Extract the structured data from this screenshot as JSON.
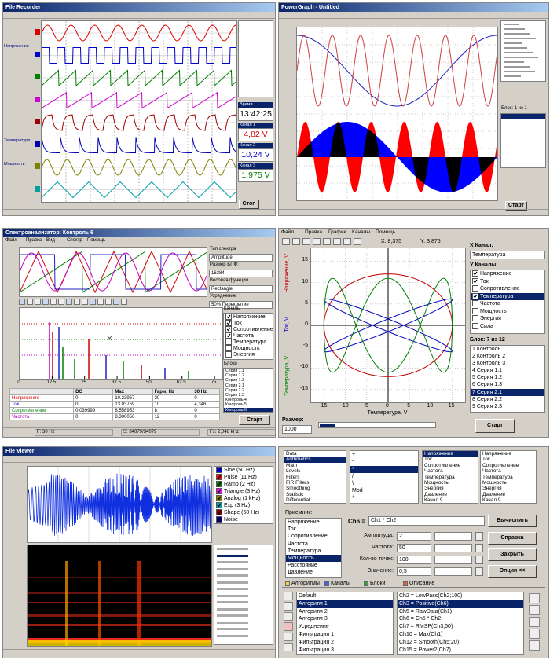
{
  "recorder": {
    "title": "File Recorder",
    "channels": [
      "Напряжение",
      "Температура",
      "Мощность"
    ],
    "readouts": [
      {
        "label": "Время",
        "value": "13:42:25",
        "color": "#000000"
      },
      {
        "label": "Канал 1",
        "value": "4,82 V",
        "color": "#d00000"
      },
      {
        "label": "Канал 2",
        "value": "10,24 V",
        "color": "#0000c0"
      },
      {
        "label": "Канал 3",
        "value": "1,975 V",
        "color": "#008000"
      }
    ],
    "button": "Стоп"
  },
  "powergraph": {
    "title": "PowerGraph - Untitled",
    "block": "Блок: 1 из 1",
    "button": "Старт"
  },
  "spectrum": {
    "title": "Спектроанализатор: Контроль 6",
    "menu": [
      "Файл",
      "Правка",
      "Вид",
      "Спектр",
      "Помощь"
    ],
    "settings": [
      "Тип спектра",
      "Amplitude",
      "Размер БПФ:",
      "16384",
      "Весовая функция",
      "Rectangle",
      "Усреднение:",
      "50% Перекрытие"
    ],
    "channels_title": "Каналы",
    "channels": [
      "Напряжение",
      "Ток",
      "Сопротивление",
      "Частота",
      "Температура",
      "Мощность",
      "Энергия"
    ],
    "checked": [
      true,
      true,
      true,
      true,
      false,
      false,
      false
    ],
    "xlim": [
      0,
      78
    ],
    "xticks": [
      0,
      12.5,
      25,
      37.5,
      50,
      62.5,
      75
    ],
    "table": {
      "header": [
        "DC",
        "Max",
        "Гарм, Hz",
        "30 Hz"
      ],
      "rows": [
        [
          "Напряжение",
          0,
          10.23967,
          20,
          0
        ],
        [
          "Ток",
          0,
          13.03759,
          10,
          "4,346"
        ],
        [
          "Сопротивление",
          0.039999,
          6.558953,
          8,
          0
        ],
        [
          "Частота",
          0,
          8.300056,
          12,
          0
        ]
      ],
      "row_colors": [
        "#d00000",
        "#0000d0",
        "#008000",
        "#c000c0"
      ]
    },
    "status": [
      "F: 30 Hz",
      "S: 34079/34079",
      "Fs: 2,048 kHz"
    ],
    "blocks_title": "Блоки",
    "blocks": [
      "Серия 1.1",
      "Серия 1.2",
      "Серия 1.3",
      "Серия 2.1",
      "Серия 2.2",
      "Серия 2.3",
      "Контроль 4",
      "Контроль 5",
      "Контроль 6"
    ],
    "selected": 8,
    "button": "Старт"
  },
  "xy": {
    "menu": [
      "Файл",
      "Правка",
      "График",
      "Каналы",
      "Помощь"
    ],
    "x_readout": "X: 8,375",
    "y_readout": "Y: 3,875",
    "x_channel_label": "X Канал:",
    "x_channel": "Температура",
    "y_channels_label": "Y Каналы:",
    "y_channels": [
      "Напряжение",
      "Ток",
      "Сопротивление",
      "Температура",
      "Частота",
      "Мощность",
      "Энергия",
      "Сила"
    ],
    "checked": [
      true,
      true,
      false,
      true,
      false,
      false,
      false,
      false
    ],
    "selected": 3,
    "block_label": "Блок: 7 из 12",
    "blocks": [
      "1 Контроль 1",
      "2 Контроль 2",
      "3 Контроль 3",
      "4 Серия 1.1",
      "5 Серия 1.2",
      "6 Серия 1.3",
      "7 Серия 2.1",
      "8 Серия 2.2",
      "9 Серия 2.3"
    ],
    "selected_block": 6,
    "xlabel": "Температура, V",
    "ylabels": [
      "Напряжение, V",
      "Ток, V",
      "Температура, V"
    ],
    "ylabel_colors": [
      "#c00000",
      "#0000c0",
      "#008000"
    ],
    "xlim": [
      -18,
      18
    ],
    "ylim": [
      -18,
      18
    ],
    "xticks": [
      -15,
      -10,
      -5,
      0,
      5,
      10,
      15
    ],
    "yticks": [
      -15,
      -10,
      -5,
      0,
      5,
      10,
      15
    ],
    "grid": true,
    "size_label": "Размер:",
    "size": "1000",
    "button": "Старт"
  },
  "viewer": {
    "title": "File Viewer",
    "legend": [
      "Sine (50 Hz)",
      "Pulse (11 Hz)",
      "Ramp (2 Hz)",
      "Triangle (3 Hz)",
      "Analog (1 kHz)",
      "Exp (3 Hz)",
      "Shape (50 Hz)",
      "Noise"
    ],
    "legend_colors": [
      "#0000ff",
      "#ff0000",
      "#008000",
      "#ff00ff",
      "#808000",
      "#00a0a0",
      "#800000",
      "#000080"
    ],
    "checked": [
      true,
      true,
      true,
      true,
      true,
      true,
      true,
      true
    ]
  },
  "calc": {
    "groups": [
      "Data",
      "Arithmetics",
      "Math",
      "Levels",
      "Filters",
      "FIR Filters",
      "Smoothing",
      "Statistic",
      "Differential"
    ],
    "group_selected": 1,
    "operators": [
      "+",
      "-",
      "*",
      "/",
      "\\",
      "Mod",
      "^"
    ],
    "operator_selected": 2,
    "channels_a": [
      "Напряжение",
      "Ток",
      "Сопротивление",
      "Частота",
      "Температура",
      "Мощность",
      "Энергия",
      "Давление",
      "Канал 9"
    ],
    "channel_a_selected": 0,
    "channels_b": [
      "Напряжение",
      "Ток",
      "Сопротивление",
      "Частота",
      "Температура",
      "Мощность",
      "Энергия",
      "Давление",
      "Канал 9"
    ],
    "receiver_label": "Приемник:",
    "receiver": [
      "Напряжение",
      "Ток",
      "Сопротивление",
      "Частота",
      "Температура",
      "Мощность",
      "Расстояние",
      "Давление"
    ],
    "receiver_selected": 5,
    "target": "Ch6 =",
    "formula": "Ch1 * Ch2",
    "compute": "Вычислить",
    "params": [
      {
        "label": "Амплитуда:",
        "value": "2"
      },
      {
        "label": "Частота:",
        "value": "50"
      },
      {
        "label": "Кол-во точек:",
        "value": "100"
      },
      {
        "label": "Значение:",
        "value": "0,5"
      }
    ],
    "buttons": [
      "Справка",
      "Закрыть",
      "Опции <<"
    ],
    "tabs": [
      "Алгоритмы",
      "Каналы",
      "Блоки",
      "Описание"
    ],
    "algorithms": [
      "Default",
      "Алгоритм 1",
      "Алгоритм 2",
      "Алгоритм 3",
      "Усреднение",
      "Фильтрация 1",
      "Фильтрация 2",
      "Фильтрация 3"
    ],
    "algorithm_selected": 1,
    "formulas": [
      "Ch2 = LowPass(Ch2;100)",
      "Ch3 = Positive(Ch6)",
      "Ch5 = RawData(Ch1)",
      "Ch6 = Ch5 * Ch2",
      "Ch7 = RMSP(Ch3;50)",
      "Ch10 = Max(Ch1)",
      "Ch12 = Smooth(Ch5;20)",
      "Ch15 = Power2(Ch7)"
    ],
    "formula_selected": 1
  }
}
